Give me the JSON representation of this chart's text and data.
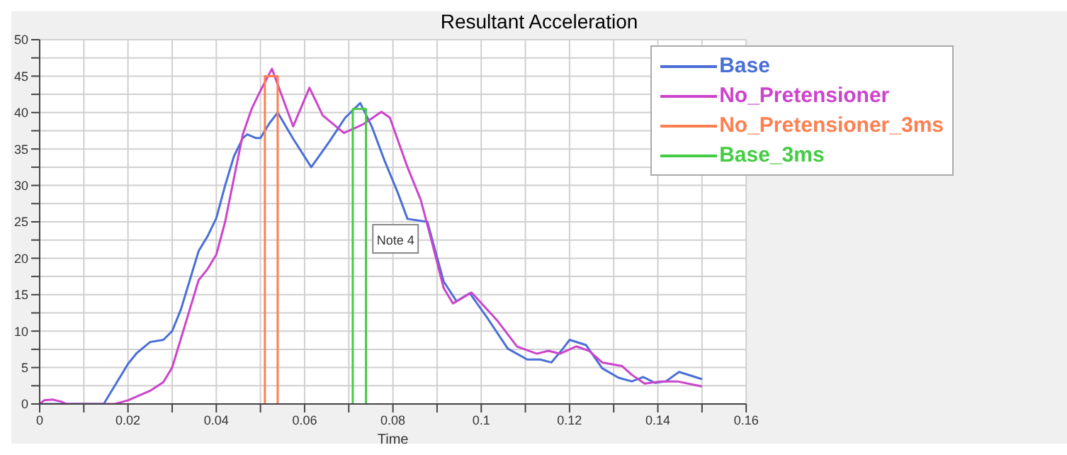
{
  "chart_data": {
    "type": "line",
    "title": "Resultant Acceleration",
    "xlabel": "Time",
    "xlim": [
      0,
      0.16
    ],
    "ylim": [
      0,
      50
    ],
    "xticks": [
      0,
      {
        "value": 0.01,
        "label": null
      },
      0.02,
      {
        "value": 0.03,
        "label": null
      },
      0.04,
      {
        "value": 0.05,
        "label": null
      },
      0.06,
      {
        "value": 0.07,
        "label": null
      },
      0.08,
      {
        "value": 0.09,
        "label": null
      },
      0.1,
      {
        "value": 0.11,
        "label": null
      },
      0.12,
      {
        "value": 0.13,
        "label": null
      },
      0.14,
      {
        "value": 0.15,
        "label": null
      },
      0.16
    ],
    "yticks": [
      0,
      {
        "value": 2.5,
        "label": null
      },
      5,
      {
        "value": 7.5,
        "label": null
      },
      10,
      {
        "value": 12.5,
        "label": null
      },
      15,
      {
        "value": 17.5,
        "label": null
      },
      20,
      {
        "value": 22.5,
        "label": null
      },
      25,
      {
        "value": 27.5,
        "label": null
      },
      30,
      {
        "value": 32.5,
        "label": null
      },
      35,
      {
        "value": 37.5,
        "label": null
      },
      40,
      {
        "value": 42.5,
        "label": null
      },
      45,
      {
        "value": 47.5,
        "label": null
      },
      50
    ],
    "grid": true,
    "legend": "top right",
    "marker": "none",
    "line_style": "solid",
    "annotations": [
      {
        "text": "Note 4",
        "x": 0.087,
        "y": 25
      }
    ],
    "series": [
      {
        "name": "Base",
        "color": "#4a6fd6",
        "x": [
          0,
          0.01,
          0.0145,
          0.02,
          0.022,
          0.025,
          0.028,
          0.03,
          0.032,
          0.034,
          0.036,
          0.038,
          0.04,
          0.042,
          0.044,
          0.046,
          0.047,
          0.049,
          0.05,
          0.052,
          0.0539,
          0.0574,
          0.0615,
          0.0656,
          0.0692,
          0.0726,
          0.0752,
          0.0781,
          0.0811,
          0.0833,
          0.0878,
          0.0915,
          0.0944,
          0.0974,
          0.1015,
          0.106,
          0.1104,
          0.1133,
          0.1159,
          0.1185,
          0.12,
          0.1237,
          0.1274,
          0.1311,
          0.1341,
          0.1367,
          0.1393,
          0.1418,
          0.1448,
          0.15
        ],
        "values": [
          0,
          0,
          0,
          5.5,
          7,
          8.5,
          8.8,
          10,
          13,
          17,
          21,
          23,
          25.5,
          30,
          34,
          36.5,
          37,
          36.5,
          36.5,
          38.5,
          40,
          36.4,
          32.5,
          36,
          39.3,
          41.3,
          38.1,
          33.4,
          29,
          25.4,
          25,
          16.8,
          14.1,
          15.2,
          11.7,
          7.6,
          6.1,
          6.1,
          5.7,
          7.6,
          8.8,
          8.1,
          4.9,
          3.6,
          3.1,
          3.7,
          2.9,
          3.1,
          4.4,
          3.4
        ]
      },
      {
        "name": "No_Pretensioner",
        "color": "#cc44cc",
        "x": [
          0,
          0.001,
          0.003,
          0.005,
          0.006,
          0.017,
          0.02,
          0.025,
          0.028,
          0.03,
          0.032,
          0.034,
          0.036,
          0.038,
          0.04,
          0.042,
          0.044,
          0.046,
          0.048,
          0.05,
          0.0526,
          0.0574,
          0.0611,
          0.0641,
          0.0689,
          0.0733,
          0.0774,
          0.0793,
          0.0833,
          0.0863,
          0.0885,
          0.0915,
          0.0936,
          0.0978,
          0.1037,
          0.1081,
          0.1126,
          0.1152,
          0.1178,
          0.1215,
          0.1244,
          0.1274,
          0.1319,
          0.1341,
          0.137,
          0.1407,
          0.1444,
          0.15
        ],
        "values": [
          0,
          0.5,
          0.6,
          0.3,
          0,
          0,
          0.5,
          1.8,
          3,
          5,
          9,
          13,
          17,
          18.5,
          20.5,
          25,
          31,
          37,
          40.5,
          43,
          46,
          38.1,
          43.4,
          39.6,
          37.2,
          38.4,
          40.1,
          39.3,
          32.5,
          28,
          23,
          15.9,
          13.8,
          15.3,
          11.4,
          7.9,
          6.9,
          7.3,
          6.9,
          7.9,
          7.3,
          5.7,
          5.2,
          4,
          2.8,
          3.1,
          3.1,
          2.4
        ]
      },
      {
        "name": "No_Pretensioner_3ms",
        "color": "#ff7f50",
        "x": [
          0.051,
          0.051,
          0.0539,
          0.0539
        ],
        "values": [
          0,
          45,
          45,
          0
        ]
      },
      {
        "name": "Base_3ms",
        "color": "#44cc44",
        "x": [
          0.0709,
          0.0709,
          0.0739,
          0.0739
        ],
        "values": [
          0,
          40.5,
          40.5,
          0
        ]
      }
    ]
  }
}
